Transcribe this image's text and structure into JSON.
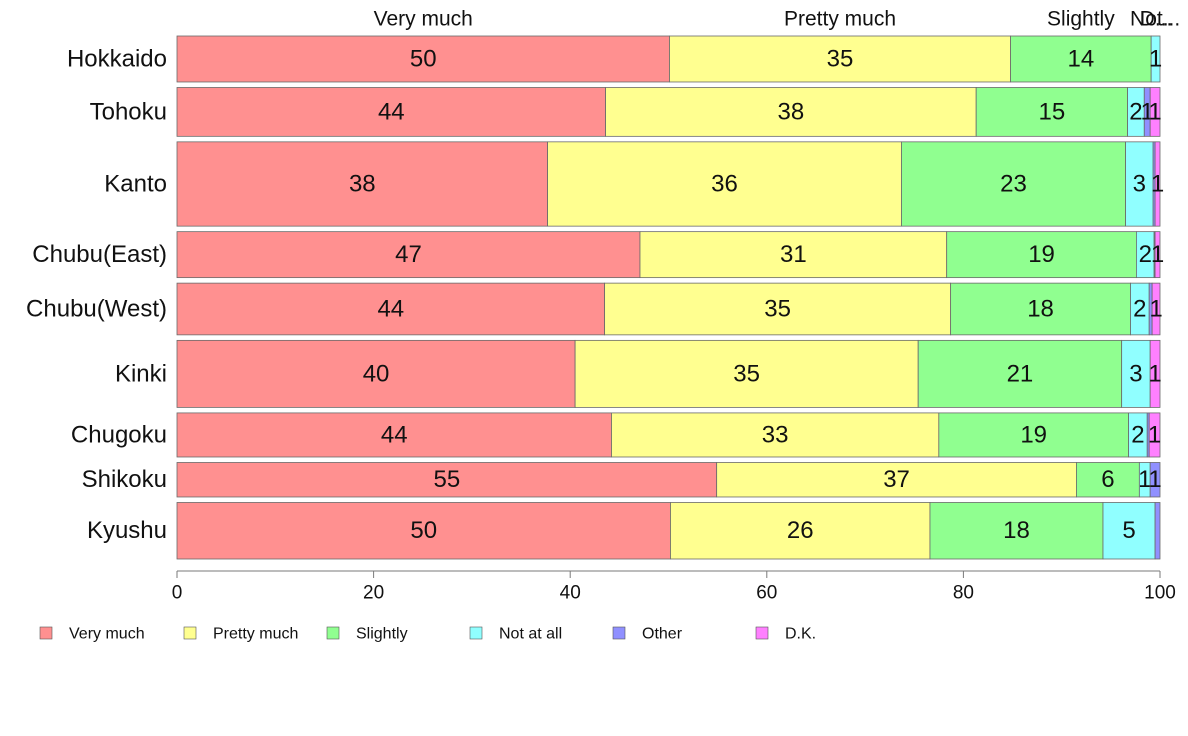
{
  "chart_data": {
    "type": "bar",
    "orientation": "horizontal",
    "stacked": true,
    "categories": [
      "Hokkaido",
      "Tohoku",
      "Kanto",
      "Chubu(East)",
      "Chubu(West)",
      "Kinki",
      "Chugoku",
      "Shikoku",
      "Kyushu"
    ],
    "category_widths": [
      48,
      51,
      88,
      48,
      54,
      70,
      46,
      36,
      59
    ],
    "series": [
      {
        "name": "Very much",
        "color": "#ff9090",
        "values": [
          50.1,
          43.6,
          37.7,
          47.1,
          43.5,
          40.5,
          44.2,
          54.9,
          50.2
        ]
      },
      {
        "name": "Pretty much",
        "color": "#ffff90",
        "values": [
          34.7,
          37.7,
          36.0,
          31.2,
          35.2,
          34.9,
          33.3,
          36.6,
          26.4
        ]
      },
      {
        "name": "Slightly",
        "color": "#90ff90",
        "values": [
          14.3,
          15.4,
          22.8,
          19.3,
          18.3,
          20.7,
          19.3,
          6.4,
          17.6
        ]
      },
      {
        "name": "Not at all",
        "color": "#90ffff",
        "values": [
          0.9,
          1.7,
          2.8,
          1.8,
          1.9,
          2.9,
          1.9,
          1.1,
          5.3
        ]
      },
      {
        "name": "Other",
        "color": "#9090ff",
        "values": [
          0,
          0.6,
          0.2,
          0.1,
          0.3,
          0,
          0.2,
          1.0,
          0.5
        ]
      },
      {
        "name": "D.K.",
        "color": "#ff80ff",
        "values": [
          0,
          1.0,
          0.5,
          0.5,
          0.8,
          1.0,
          1.1,
          0,
          0
        ]
      }
    ],
    "data_labels": [
      [
        "50",
        "35",
        "14",
        "1",
        "",
        ""
      ],
      [
        "44",
        "38",
        "15",
        "2",
        "1",
        "1"
      ],
      [
        "38",
        "36",
        "23",
        "3",
        "",
        "1"
      ],
      [
        "47",
        "31",
        "19",
        "2",
        "",
        "1"
      ],
      [
        "44",
        "35",
        "18",
        "2",
        "",
        "1"
      ],
      [
        "40",
        "35",
        "21",
        "3",
        "",
        "1"
      ],
      [
        "44",
        "33",
        "19",
        "2",
        "",
        "1"
      ],
      [
        "55",
        "37",
        "6",
        "1",
        "1",
        ""
      ],
      [
        "50",
        "26",
        "18",
        "5",
        "",
        ""
      ]
    ],
    "top_labels": [
      "Very much",
      "Pretty much",
      "Slightly",
      "Not...",
      "D..."
    ],
    "xlim": [
      0,
      100
    ],
    "xticks": [
      0,
      20,
      40,
      60,
      80,
      100
    ],
    "legend_position": "bottom",
    "grid": false
  }
}
